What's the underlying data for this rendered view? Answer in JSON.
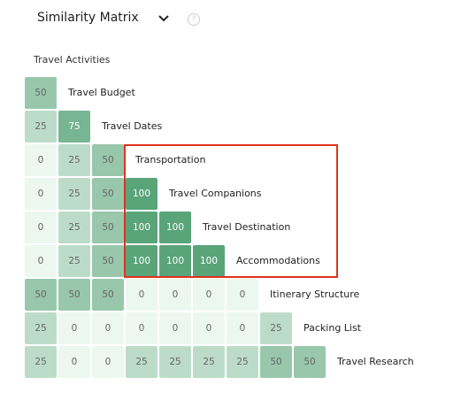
{
  "header": {
    "title": "Similarity Matrix"
  },
  "section_label": "Travel Activities",
  "rows": [
    {
      "label": "Travel Budget",
      "cells": [
        50
      ]
    },
    {
      "label": "Travel Dates",
      "cells": [
        25,
        75
      ]
    },
    {
      "label": "Transportation",
      "cells": [
        0,
        25,
        50
      ]
    },
    {
      "label": "Travel Companions",
      "cells": [
        0,
        25,
        50,
        100
      ]
    },
    {
      "label": "Travel Destination",
      "cells": [
        0,
        25,
        50,
        100,
        100
      ]
    },
    {
      "label": "Accommodations",
      "cells": [
        0,
        25,
        50,
        100,
        100,
        100
      ]
    },
    {
      "label": "Itinerary Structure",
      "cells": [
        50,
        50,
        50,
        0,
        0,
        0,
        0
      ]
    },
    {
      "label": "Packing List",
      "cells": [
        25,
        0,
        0,
        0,
        0,
        0,
        0,
        25
      ]
    },
    {
      "label": "Travel Research",
      "cells": [
        25,
        0,
        0,
        25,
        25,
        25,
        25,
        50,
        50
      ]
    }
  ]
}
